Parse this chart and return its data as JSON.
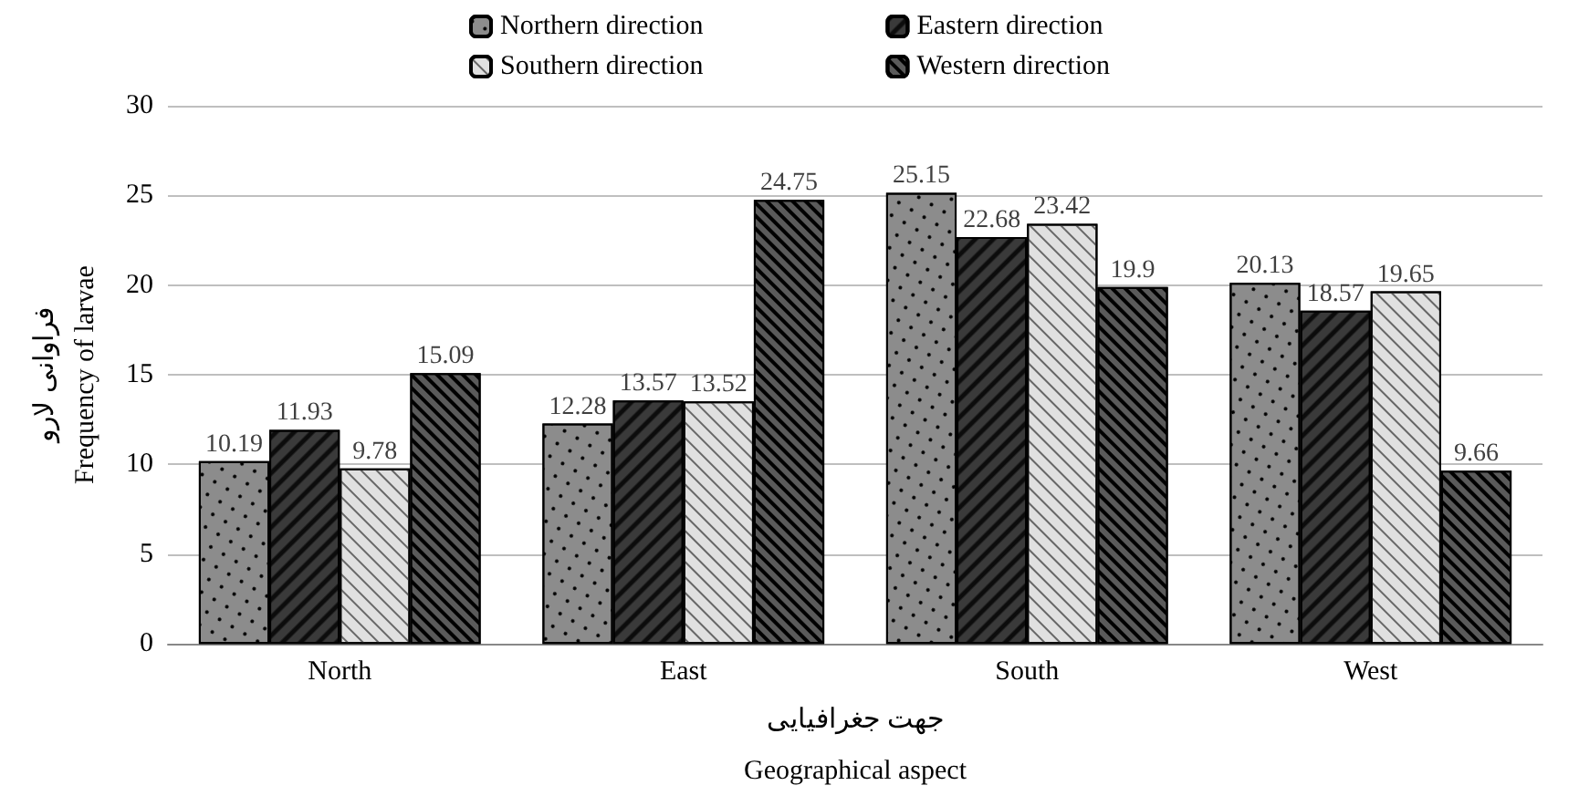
{
  "chart_data": {
    "type": "bar",
    "xlabel": "جهت جغرافیایی\nGeographical aspect",
    "ylabel": "فراوانی لارو\nFrequency of larvae",
    "categories": [
      "North",
      "East",
      "South",
      "West"
    ],
    "series": [
      {
        "name": "Northern direction",
        "color": "#8c8c8c",
        "values": [
          10.19,
          12.28,
          25.15,
          20.13
        ]
      },
      {
        "name": "Eastern direction",
        "color": "#3a3a3a",
        "values": [
          11.93,
          13.57,
          22.68,
          18.57
        ]
      },
      {
        "name": "Southern direction",
        "color": "#e0e0e0",
        "values": [
          9.78,
          13.52,
          23.42,
          19.65
        ]
      },
      {
        "name": "Western direction",
        "color": "#5a5a5a",
        "values": [
          15.09,
          24.75,
          19.9,
          9.66
        ]
      }
    ],
    "ylim": [
      0,
      30
    ],
    "yticks": [
      0,
      5,
      10,
      15,
      20,
      25,
      30
    ],
    "grid": "y",
    "legend": "top",
    "data_labels": true
  }
}
